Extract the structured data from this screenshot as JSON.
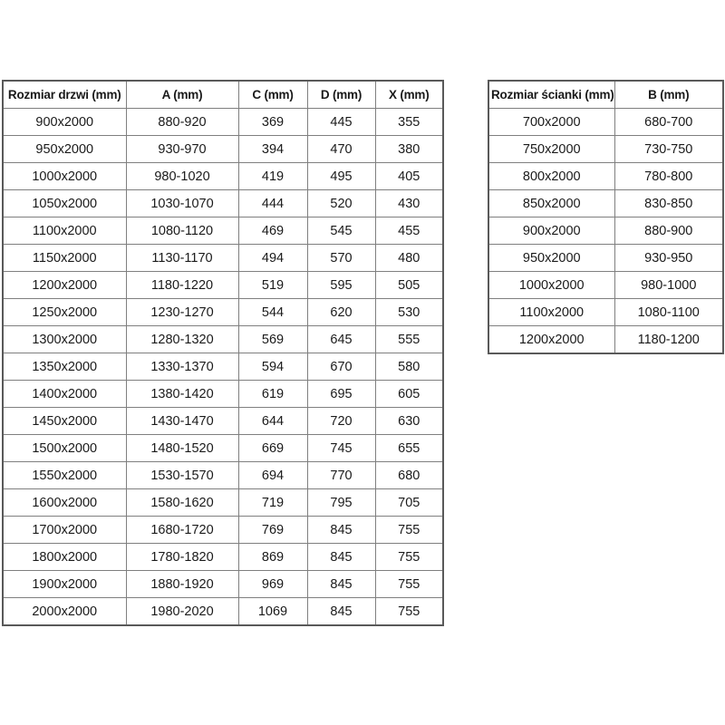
{
  "page": {
    "background": "#ffffff",
    "text_color": "#1a1a1a",
    "border_inner_color": "#7f7f7f",
    "border_outer_color": "#595959"
  },
  "door_table": {
    "headers": [
      "Rozmiar drzwi (mm)",
      "A (mm)",
      "C (mm)",
      "D (mm)",
      "X (mm)"
    ],
    "rows": [
      [
        "900x2000",
        "880-920",
        "369",
        "445",
        "355"
      ],
      [
        "950x2000",
        "930-970",
        "394",
        "470",
        "380"
      ],
      [
        "1000x2000",
        "980-1020",
        "419",
        "495",
        "405"
      ],
      [
        "1050x2000",
        "1030-1070",
        "444",
        "520",
        "430"
      ],
      [
        "1100x2000",
        "1080-1120",
        "469",
        "545",
        "455"
      ],
      [
        "1150x2000",
        "1130-1170",
        "494",
        "570",
        "480"
      ],
      [
        "1200x2000",
        "1180-1220",
        "519",
        "595",
        "505"
      ],
      [
        "1250x2000",
        "1230-1270",
        "544",
        "620",
        "530"
      ],
      [
        "1300x2000",
        "1280-1320",
        "569",
        "645",
        "555"
      ],
      [
        "1350x2000",
        "1330-1370",
        "594",
        "670",
        "580"
      ],
      [
        "1400x2000",
        "1380-1420",
        "619",
        "695",
        "605"
      ],
      [
        "1450x2000",
        "1430-1470",
        "644",
        "720",
        "630"
      ],
      [
        "1500x2000",
        "1480-1520",
        "669",
        "745",
        "655"
      ],
      [
        "1550x2000",
        "1530-1570",
        "694",
        "770",
        "680"
      ],
      [
        "1600x2000",
        "1580-1620",
        "719",
        "795",
        "705"
      ],
      [
        "1700x2000",
        "1680-1720",
        "769",
        "845",
        "755"
      ],
      [
        "1800x2000",
        "1780-1820",
        "869",
        "845",
        "755"
      ],
      [
        "1900x2000",
        "1880-1920",
        "969",
        "845",
        "755"
      ],
      [
        "2000x2000",
        "1980-2020",
        "1069",
        "845",
        "755"
      ]
    ]
  },
  "wall_table": {
    "headers": [
      "Rozmiar ścianki (mm)",
      "B (mm)"
    ],
    "rows": [
      [
        "700x2000",
        "680-700"
      ],
      [
        "750x2000",
        "730-750"
      ],
      [
        "800x2000",
        "780-800"
      ],
      [
        "850x2000",
        "830-850"
      ],
      [
        "900x2000",
        "880-900"
      ],
      [
        "950x2000",
        "930-950"
      ],
      [
        "1000x2000",
        "980-1000"
      ],
      [
        "1100x2000",
        "1080-1100"
      ],
      [
        "1200x2000",
        "1180-1200"
      ]
    ]
  }
}
